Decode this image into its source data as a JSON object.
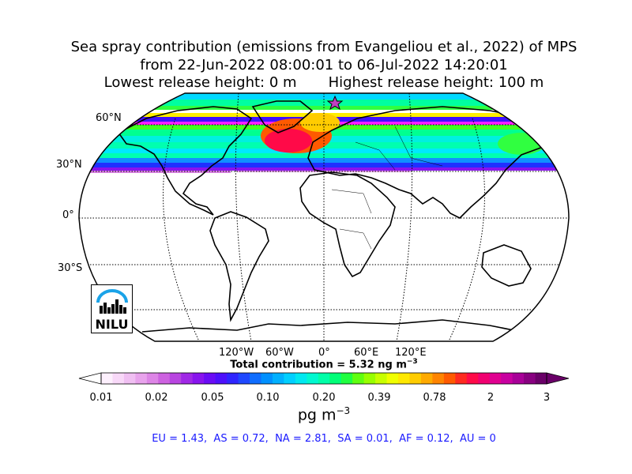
{
  "title": {
    "line1": "Sea spray contribution (emissions from Evangeliou et al., 2022) of MPS",
    "line2": "from 22-Jun-2022 08:00:01 to 06-Jul-2022 14:20:01",
    "line3": "Lowest release height: 0 m       Highest release height: 100 m"
  },
  "map": {
    "lat_labels": [
      "60°N",
      "30°N",
      "0°",
      "30°S"
    ],
    "lon_labels": [
      "120°W",
      "60°W",
      "0°",
      "60°E",
      "120°E"
    ],
    "release_marker": "star-marker",
    "logo_text": "NILU"
  },
  "total": "Total contribution = 5.32 ng m",
  "total_exp": "−3",
  "colorbar": {
    "tick_labels": [
      "0.01",
      "0.02",
      "0.05",
      "0.10",
      "0.20",
      "0.39",
      "0.78",
      "2",
      "3"
    ],
    "units": "pg m",
    "units_exp": "−3",
    "colors": [
      "#fdf0fd",
      "#f8d8f8",
      "#f0bff2",
      "#e8a3ec",
      "#dd85e6",
      "#cd62e0",
      "#b845e0",
      "#a028e6",
      "#8814ee",
      "#6a0cf5",
      "#4d10fb",
      "#2f25ff",
      "#1f48ff",
      "#0f6dff",
      "#0090ff",
      "#00b0ff",
      "#00cfff",
      "#00e8f0",
      "#00f8d0",
      "#00ffa8",
      "#00ff78",
      "#20ff40",
      "#60ff10",
      "#98ff00",
      "#c8ff00",
      "#f0ff00",
      "#ffe800",
      "#ffcc00",
      "#ffaa00",
      "#ff8400",
      "#ff5a00",
      "#ff2a20",
      "#ff0a48",
      "#f00070",
      "#e00090",
      "#c800a0",
      "#a80098",
      "#880080",
      "#6a0068"
    ]
  },
  "regions": "EU = 1.43,  AS = 0.72,  NA = 2.81,  SA = 0.01,  AF = 0.12,  AU = 0"
}
